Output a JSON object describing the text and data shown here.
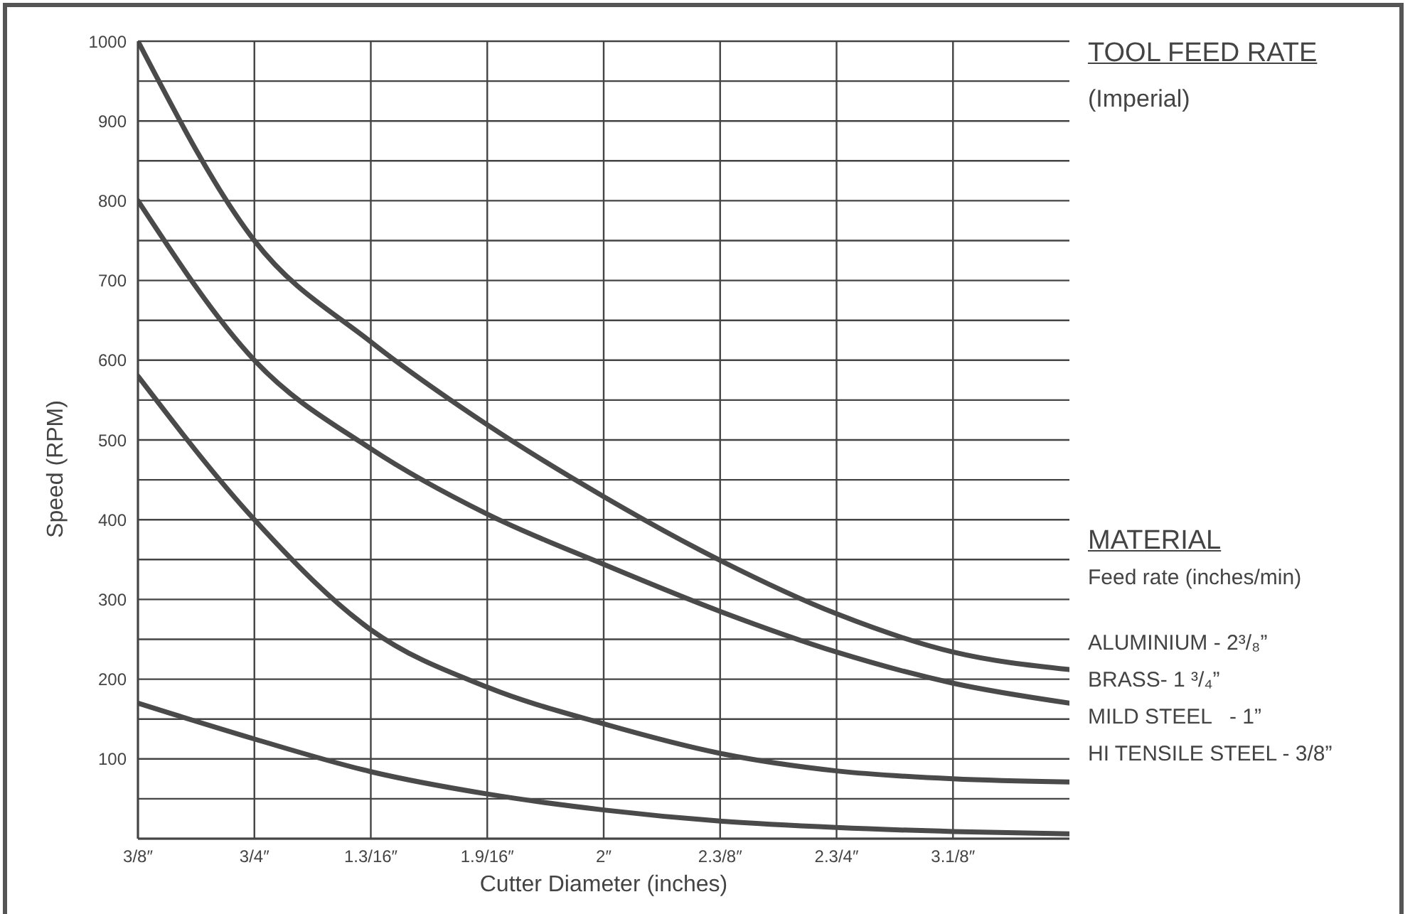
{
  "chart_data": {
    "type": "line",
    "title": "TOOL FEED RATE",
    "subtitle": "(Imperial)",
    "xlabel": "Cutter Diameter (inches)",
    "ylabel": "Speed (RPM)",
    "legend_title": "MATERIAL",
    "annotations": [
      "Feed rate (inches/min)"
    ],
    "categories": [
      "3/8″",
      "3/4″",
      "1.3/16″",
      "1.9/16″",
      "2″",
      "2.3/8″",
      "2.3/4″",
      "3.1/8″",
      null
    ],
    "series": [
      {
        "name": "ALUMINIUM - 2³/₈”",
        "color": "#4a4a4a",
        "values": [
          1000,
          750,
          623,
          519,
          429,
          349,
          282,
          234,
          212
        ]
      },
      {
        "name": "BRASS- 1 ³/₄”",
        "color": "#4a4a4a",
        "values": [
          800,
          600,
          489,
          407,
          344,
          285,
          234,
          195,
          170
        ]
      },
      {
        "name": "MILD STEEL   - 1”",
        "color": "#4a4a4a",
        "values": [
          580,
          400,
          262,
          190,
          144,
          107,
          85,
          75,
          71
        ]
      },
      {
        "name": "HI TENSILE STEEL - 3/8”",
        "color": "#4a4a4a",
        "values": [
          170,
          125,
          84,
          56,
          36,
          22,
          14,
          9,
          6
        ]
      }
    ],
    "ylim": [
      0,
      1000
    ],
    "yticks": [
      {
        "value": 0,
        "label": null
      },
      {
        "value": 50,
        "label": null
      },
      100,
      {
        "value": 150,
        "label": null
      },
      200,
      {
        "value": 250,
        "label": null
      },
      300,
      {
        "value": 350,
        "label": null
      },
      400,
      {
        "value": 450,
        "label": null
      },
      500,
      {
        "value": 550,
        "label": null
      },
      600,
      {
        "value": 650,
        "label": null
      },
      700,
      {
        "value": 750,
        "label": null
      },
      800,
      {
        "value": 850,
        "label": null
      },
      900,
      {
        "value": 950,
        "label": null
      },
      1000
    ],
    "grid": true,
    "legend": "right",
    "marker": "none",
    "line_style": "solid"
  }
}
